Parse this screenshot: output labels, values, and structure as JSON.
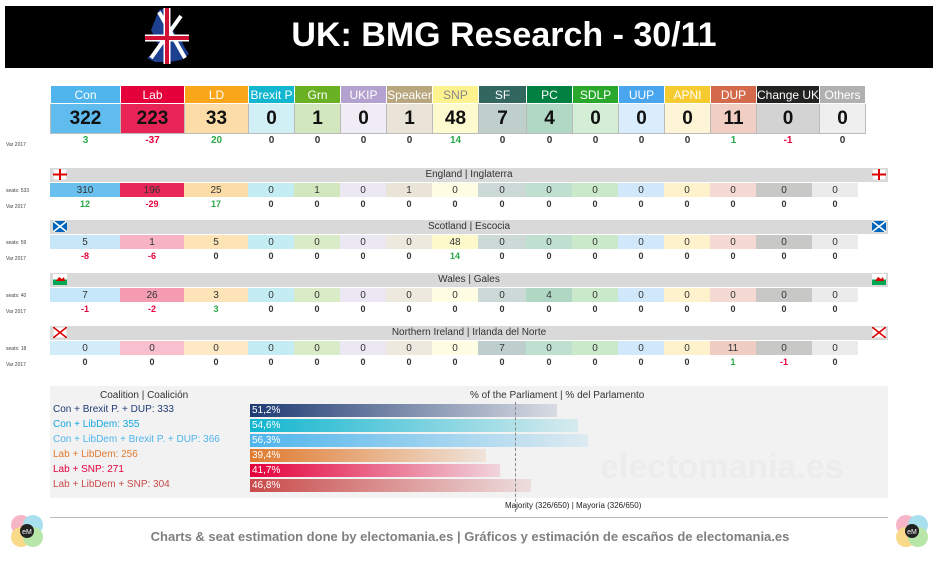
{
  "title": "UK: BMG Research - 30/11",
  "parties": [
    {
      "name": "Con",
      "color": "#4fb5ec"
    },
    {
      "name": "Lab",
      "color": "#e4003b"
    },
    {
      "name": "LD",
      "color": "#faa61a"
    },
    {
      "name": "Brexit P",
      "color": "#12b6cf"
    },
    {
      "name": "Grn",
      "color": "#6ab023"
    },
    {
      "name": "UKIP",
      "color": "#b3a2cf"
    },
    {
      "name": "Speaker",
      "color": "#b8a77e"
    },
    {
      "name": "SNP",
      "color": "#fdf38e"
    },
    {
      "name": "SF",
      "color": "#326760"
    },
    {
      "name": "PC",
      "color": "#008142"
    },
    {
      "name": "SDLP",
      "color": "#2aa82c"
    },
    {
      "name": "UUP",
      "color": "#48a5ee"
    },
    {
      "name": "APNI",
      "color": "#f6cb2f"
    },
    {
      "name": "DUP",
      "color": "#d46a4c"
    },
    {
      "name": "Change UK",
      "color": "#222221"
    },
    {
      "name": "Others",
      "color": "#b0b0b0"
    }
  ],
  "var_label": "Var 2017",
  "total_seats": [
    "322",
    "223",
    "33",
    "0",
    "1",
    "0",
    "1",
    "48",
    "7",
    "4",
    "0",
    "0",
    "0",
    "11",
    "0",
    "0"
  ],
  "total_var": [
    "3",
    "-37",
    "20",
    "0",
    "0",
    "0",
    "0",
    "14",
    "0",
    "0",
    "0",
    "0",
    "0",
    "1",
    "-1",
    "0"
  ],
  "regions": [
    {
      "name": "England | Inglaterra",
      "seats_label": "seats: 533",
      "seats": [
        "310",
        "196",
        "25",
        "0",
        "1",
        "0",
        "1",
        "0",
        "0",
        "0",
        "0",
        "0",
        "0",
        "0",
        "0",
        "0"
      ],
      "var": [
        "12",
        "-29",
        "17",
        "0",
        "0",
        "0",
        "0",
        "0",
        "0",
        "0",
        "0",
        "0",
        "0",
        "0",
        "0",
        "0"
      ]
    },
    {
      "name": "Scotland | Escocia",
      "seats_label": "seats: 59",
      "seats": [
        "5",
        "1",
        "5",
        "0",
        "0",
        "0",
        "0",
        "48",
        "0",
        "0",
        "0",
        "0",
        "0",
        "0",
        "0",
        "0"
      ],
      "var": [
        "-8",
        "-6",
        "0",
        "0",
        "0",
        "0",
        "0",
        "14",
        "0",
        "0",
        "0",
        "0",
        "0",
        "0",
        "0",
        "0"
      ]
    },
    {
      "name": "Wales | Gales",
      "seats_label": "seats: 40",
      "seats": [
        "7",
        "26",
        "3",
        "0",
        "0",
        "0",
        "0",
        "0",
        "0",
        "4",
        "0",
        "0",
        "0",
        "0",
        "0",
        "0"
      ],
      "var": [
        "-1",
        "-2",
        "3",
        "0",
        "0",
        "0",
        "0",
        "0",
        "0",
        "0",
        "0",
        "0",
        "0",
        "0",
        "0",
        "0"
      ]
    },
    {
      "name": "Northern Ireland | Irlanda del Norte",
      "seats_label": "seats: 18",
      "seats": [
        "0",
        "0",
        "0",
        "0",
        "0",
        "0",
        "0",
        "0",
        "7",
        "0",
        "0",
        "0",
        "0",
        "11",
        "0",
        "0"
      ],
      "var": [
        "0",
        "0",
        "0",
        "0",
        "0",
        "0",
        "0",
        "0",
        "0",
        "0",
        "0",
        "0",
        "0",
        "1",
        "-1",
        "0"
      ]
    }
  ],
  "coalition_header": "Coalition | Coalición",
  "parliament_header": "% of the Parliament | % del Parlamento",
  "majority_label": "Majority (326/650) | Mayoría (326/650)",
  "watermark": "electomania.es",
  "footer": "Charts & seat estimation done by electomania.es  |  Gráficos y estimación de escaños de electomania.es",
  "chart_data": {
    "type": "bar",
    "categories": [
      "Con + Brexit P. + DUP: 333",
      "Con + LibDem: 355",
      "Con + LibDem + Brexit P. + DUP: 366",
      "Lab + LibDem: 256",
      "Lab + SNP: 271",
      "Lab + LibDem + SNP: 304"
    ],
    "values": [
      51.2,
      54.6,
      56.3,
      39.4,
      41.7,
      46.8
    ],
    "value_labels": [
      "51,2%",
      "54,6%",
      "56,3%",
      "39,4%",
      "41,7%",
      "46,8%"
    ],
    "colors": [
      "#1f3b73",
      "#12b6cf",
      "#4fb5ec",
      "#e07a2e",
      "#e4003b",
      "#c94a4a"
    ],
    "label_colors": [
      "#1f3b73",
      "#12a6df",
      "#4fb5ec",
      "#e07a2e",
      "#e4003b",
      "#c94a4a"
    ],
    "majority_line": 50.15,
    "xlim": [
      0,
      100
    ]
  }
}
